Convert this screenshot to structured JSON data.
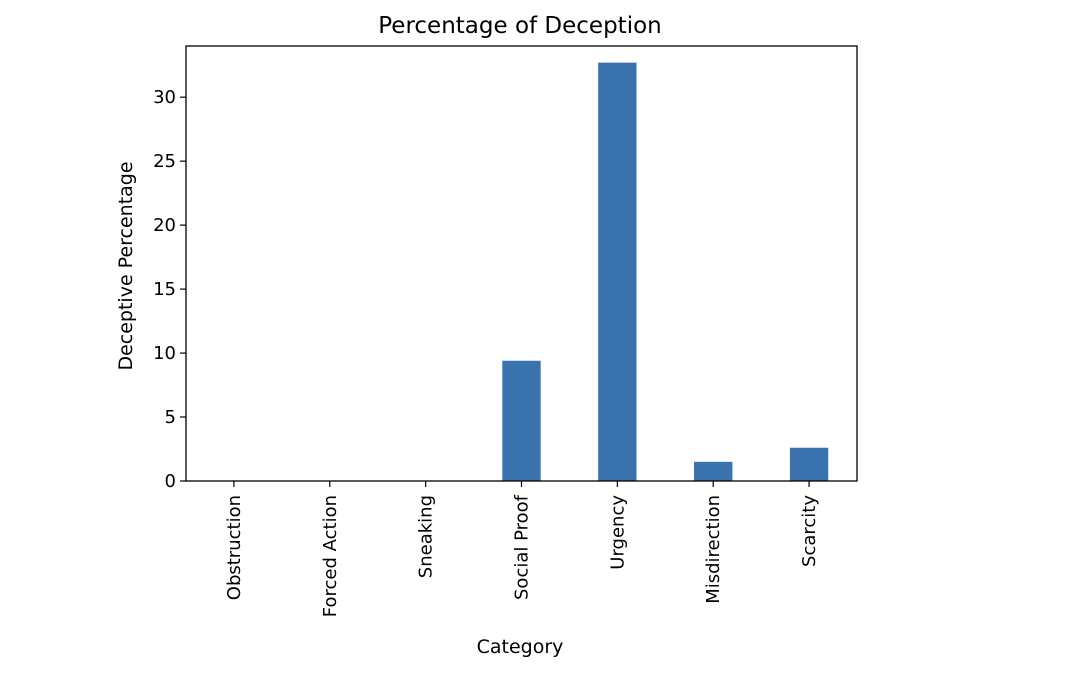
{
  "chart_data": {
    "type": "bar",
    "title": "Percentage of Deception",
    "xlabel": "Category",
    "ylabel": "Deceptive Percentage",
    "categories": [
      "Obstruction",
      "Forced Action",
      "Sneaking",
      "Social Proof",
      "Urgency",
      "Misdirection",
      "Scarcity"
    ],
    "values": [
      0,
      0,
      0,
      9.4,
      32.7,
      1.5,
      2.6
    ],
    "ylim": [
      0,
      34.0
    ],
    "yticks": [
      0,
      5,
      10,
      15,
      20,
      25,
      30
    ],
    "grid": false,
    "bar_color": "#3a72ad"
  }
}
